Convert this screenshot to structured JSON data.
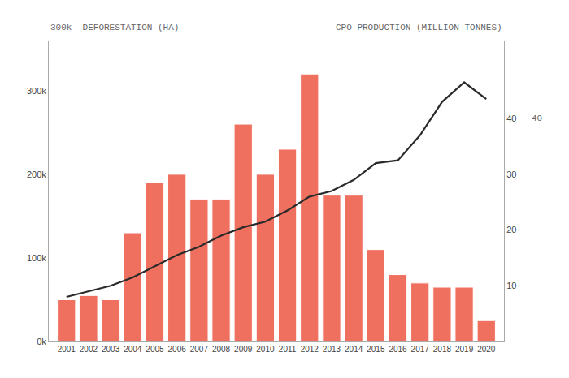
{
  "chart_data": {
    "type": "bar",
    "ylabel": "300k  DEFORESTATION (HA)",
    "y2label": "CPO PRODUCTION (MILLION TONNES)",
    "annotations": [
      "40"
    ],
    "x": [
      2001,
      2002,
      2003,
      2004,
      2005,
      2006,
      2007,
      2008,
      2009,
      2010,
      2011,
      2012,
      2013,
      2014,
      2015,
      2016,
      2017,
      2018,
      2019,
      2020
    ],
    "series": [
      {
        "type": "bar",
        "color": "#f07060",
        "values": [
          50000,
          55000,
          50000,
          130000,
          190000,
          200000,
          170000,
          170000,
          260000,
          200000,
          230000,
          320000,
          175000,
          175000,
          110000,
          80000,
          70000,
          65000,
          65000,
          25000
        ]
      },
      {
        "type": "line",
        "color": "#2a2a2a",
        "axis": "y2",
        "values": [
          8.0,
          9.0,
          10.0,
          11.5,
          13.5,
          15.5,
          17.0,
          19.0,
          20.5,
          21.5,
          23.5,
          26.0,
          27.0,
          29.0,
          32.0,
          32.5,
          37.0,
          43.0,
          46.5,
          43.5
        ]
      }
    ],
    "xlim": [
      2000.2,
      2020.8
    ],
    "xticks": [
      2001,
      2002,
      2003,
      2004,
      2005,
      2006,
      2007,
      2008,
      2009,
      2010,
      2011,
      2012,
      2013,
      2014,
      2015,
      2016,
      2017,
      2018,
      2019,
      2020
    ],
    "ylim": [
      0,
      360000
    ],
    "yticks": [
      {
        "value": 0,
        "label": "0k"
      },
      {
        "value": 100000,
        "label": "100k"
      },
      {
        "value": 200000,
        "label": "200k"
      },
      {
        "value": 300000,
        "label": "300k"
      }
    ],
    "y2lim": [
      0,
      54
    ],
    "y2ticks": [
      10,
      20,
      30,
      40
    ],
    "grid": false
  }
}
